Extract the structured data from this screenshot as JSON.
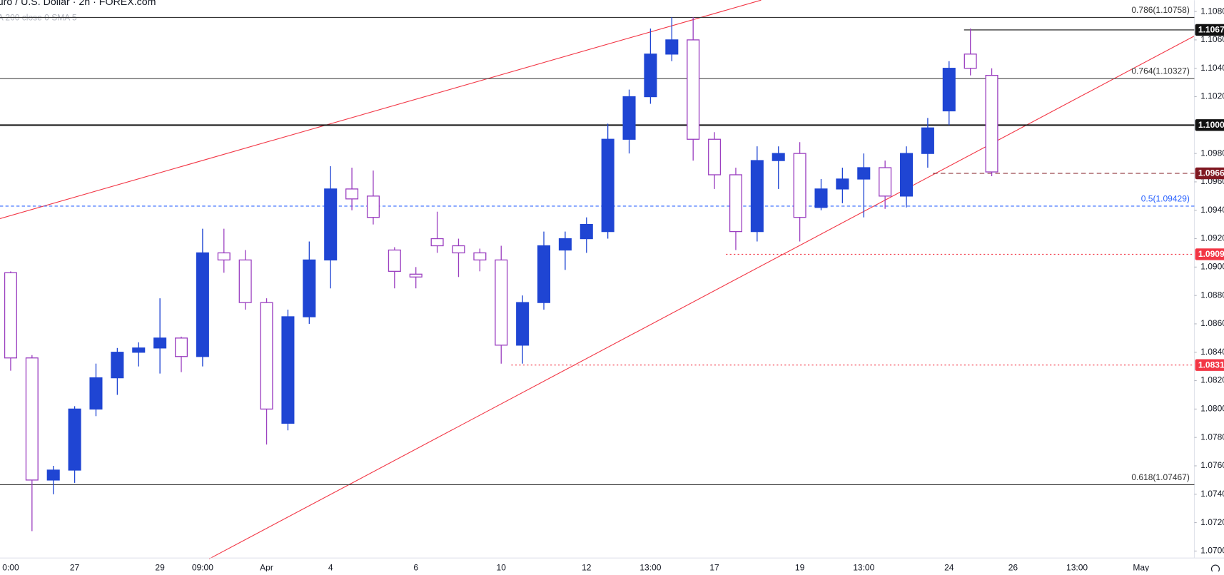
{
  "chart_data": {
    "type": "candlestick",
    "title": "uro / U.S. Dollar · 2h · FOREX.com",
    "subtitle": "A 200 close 0 SMA 5",
    "categories": [
      "0:00",
      null,
      null,
      "27",
      null,
      null,
      null,
      "29",
      null,
      "09:00",
      null,
      null,
      "Apr",
      null,
      null,
      "4",
      null,
      null,
      null,
      "6",
      null,
      null,
      null,
      "10",
      null,
      null,
      null,
      "12",
      null,
      null,
      "13:00",
      null,
      null,
      "17",
      null,
      null,
      null,
      "19",
      null,
      null,
      "13:00",
      null,
      null,
      null,
      "24",
      null,
      null,
      "26",
      null,
      null,
      "13:00",
      null,
      null,
      "May",
      null,
      null
    ],
    "open": [
      1.0896,
      1.0836,
      1.075,
      1.0757,
      1.08,
      1.0822,
      1.084,
      1.0843,
      1.085,
      1.0837,
      1.091,
      1.0905,
      1.0875,
      1.079,
      1.0865,
      1.0905,
      1.0955,
      1.095,
      1.0912,
      1.0895,
      1.092,
      1.0915,
      1.091,
      1.0905,
      1.0845,
      1.0875,
      1.0912,
      1.092,
      1.0925,
      1.099,
      1.102,
      1.105,
      1.106,
      1.099,
      1.0965,
      1.0925,
      1.0975,
      1.098,
      1.0942,
      1.0955,
      1.0962,
      1.097,
      1.095,
      1.098,
      1.101,
      1.105,
      1.1035,
      null,
      null,
      null,
      null,
      null,
      null,
      null,
      null,
      null
    ],
    "high": [
      1.0897,
      1.0838,
      1.076,
      1.0802,
      1.0832,
      1.0843,
      1.0847,
      1.0878,
      1.0851,
      1.0927,
      1.0927,
      1.0912,
      1.0878,
      1.087,
      1.0918,
      1.0971,
      1.097,
      1.0968,
      1.0914,
      1.09,
      1.0939,
      1.092,
      1.0913,
      1.0915,
      1.088,
      1.0925,
      1.0925,
      1.0935,
      1.1001,
      1.1025,
      1.1068,
      1.1076,
      1.1076,
      1.0995,
      1.097,
      1.0985,
      1.0985,
      1.0988,
      1.0962,
      1.097,
      1.098,
      1.0975,
      1.0985,
      1.1005,
      1.1045,
      1.1068,
      1.104,
      null,
      null,
      null,
      null,
      null,
      null,
      null,
      null,
      null
    ],
    "low": [
      1.0827,
      1.0714,
      1.074,
      1.0748,
      1.0795,
      1.081,
      1.083,
      1.0825,
      1.0826,
      1.083,
      1.0896,
      1.087,
      1.0775,
      1.0785,
      1.086,
      1.0885,
      1.094,
      1.093,
      1.0885,
      1.0885,
      1.091,
      1.0893,
      1.0897,
      1.0832,
      1.0832,
      1.087,
      1.0898,
      1.091,
      1.092,
      1.098,
      1.1015,
      1.1045,
      1.0975,
      1.0955,
      1.0912,
      1.0918,
      1.0955,
      1.0918,
      1.094,
      1.0945,
      1.0935,
      1.0941,
      1.0942,
      1.097,
      1.1,
      1.1035,
      1.0964,
      null,
      null,
      null,
      null,
      null,
      null,
      null,
      null,
      null
    ],
    "close": [
      1.0836,
      1.075,
      1.0757,
      1.08,
      1.0822,
      1.084,
      1.0843,
      1.085,
      1.0837,
      1.091,
      1.0905,
      1.0875,
      1.08,
      1.0865,
      1.0905,
      1.0955,
      1.0948,
      1.0935,
      1.0897,
      1.0893,
      1.0915,
      1.091,
      1.0905,
      1.0845,
      1.0875,
      1.0915,
      1.092,
      1.093,
      1.099,
      1.102,
      1.105,
      1.106,
      1.099,
      1.0965,
      1.0925,
      1.0975,
      1.098,
      1.0935,
      1.0955,
      1.0962,
      1.097,
      1.095,
      1.098,
      1.0998,
      1.104,
      1.104,
      1.0967,
      null,
      null,
      null,
      null,
      null,
      null,
      null,
      null,
      null
    ],
    "up_color": "#1f45d3",
    "down_color": "#9b3fc0",
    "ylim": [
      1.0696,
      1.1088
    ],
    "yticks": [
      {
        "value": 1.108,
        "label": "1.1080"
      },
      {
        "value": 1.106,
        "label": "1.1060"
      },
      {
        "value": 1.104,
        "label": "1.1040"
      },
      {
        "value": 1.102,
        "label": "1.1020"
      },
      {
        "value": 1.1,
        "label": "1.1000"
      },
      {
        "value": 1.098,
        "label": "1.0980"
      },
      {
        "value": 1.096,
        "label": "1.0960"
      },
      {
        "value": 1.094,
        "label": "1.0940"
      },
      {
        "value": 1.092,
        "label": "1.0920"
      },
      {
        "value": 1.09,
        "label": "1.0900"
      },
      {
        "value": 1.088,
        "label": "1.0880"
      },
      {
        "value": 1.086,
        "label": "1.0860"
      },
      {
        "value": 1.084,
        "label": "1.0840"
      },
      {
        "value": 1.082,
        "label": "1.0820"
      },
      {
        "value": 1.08,
        "label": "1.0800"
      },
      {
        "value": 1.078,
        "label": "1.0780"
      },
      {
        "value": 1.076,
        "label": "1.0760"
      },
      {
        "value": 1.074,
        "label": "1.0740"
      },
      {
        "value": 1.072,
        "label": "1.0720"
      },
      {
        "value": 1.07,
        "label": "1.0700"
      }
    ],
    "fib_levels": [
      {
        "label": "0.786(1.10758)",
        "value": 1.10758,
        "color": "#333333"
      },
      {
        "label": "0.764(1.10327)",
        "value": 1.10327,
        "color": "#333333"
      },
      {
        "label": "0.5(1.09429)",
        "value": 1.09429,
        "color": "#2962ff"
      },
      {
        "label": "0.618(1.07467)",
        "value": 1.07467,
        "color": "#333333"
      }
    ],
    "price_levels": [
      {
        "value": 1.1067,
        "label": "1.1067",
        "color": "#111111"
      },
      {
        "value": 1.1,
        "label": "1.1000",
        "color": "#111111"
      },
      {
        "value": 1.0966,
        "label": "1.0966",
        "color": "#801922"
      },
      {
        "value": 1.0909,
        "label": "1.0909",
        "color": "#f23645"
      },
      {
        "value": 1.0831,
        "label": "1.0831",
        "color": "#f23645"
      }
    ]
  }
}
